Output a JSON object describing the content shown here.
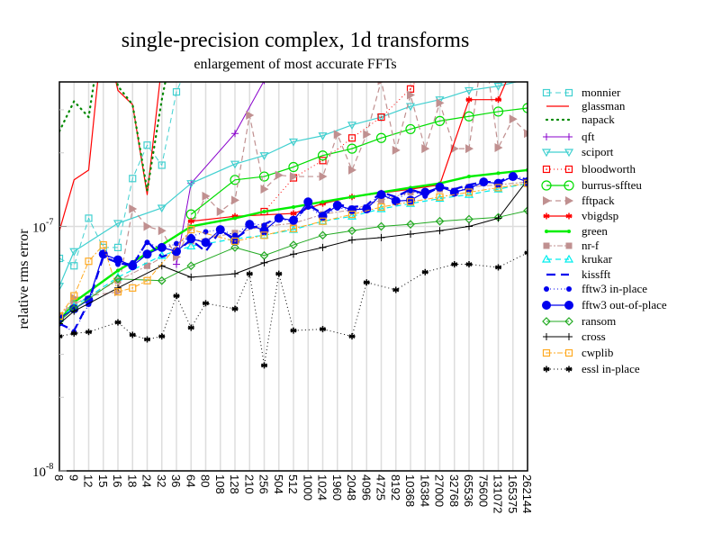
{
  "chart_data": {
    "type": "line",
    "title": "single-precision complex, 1d transforms",
    "subtitle": "enlargement of most accurate FFTs",
    "xlabel": "",
    "ylabel": "relative rms error",
    "yscale": "log",
    "ylim": [
      1e-08,
      3.9e-07
    ],
    "yticks": [
      {
        "mantissa": "10",
        "exponent": "-7",
        "value": 1e-07
      },
      {
        "mantissa": "10",
        "exponent": "-8",
        "value": 1e-08
      }
    ],
    "grid": "vertical",
    "legend_position": "right",
    "categories": [
      "8",
      "9",
      "12",
      "15",
      "16",
      "18",
      "24",
      "32",
      "36",
      "64",
      "80",
      "108",
      "128",
      "210",
      "256",
      "504",
      "512",
      "1000",
      "1024",
      "1960",
      "2048",
      "4096",
      "4725",
      "8192",
      "10368",
      "16384",
      "27000",
      "32768",
      "65536",
      "75600",
      "131072",
      "165375",
      "262144"
    ],
    "series": [
      {
        "name": "monnier",
        "color": "#40d0d0",
        "dash": "6,4",
        "width": 1,
        "marker": "square-open",
        "values": [
          7.4e-08,
          6.9e-08,
          1.08e-07,
          8.2e-08,
          8.2e-08,
          1.57e-07,
          2.15e-07,
          1.78e-07,
          3.55e-07,
          4.9e-07,
          6.8e-07,
          6.1e-07,
          1e-06,
          null,
          null,
          null,
          null,
          null,
          null,
          null,
          null,
          null,
          null,
          null,
          null,
          null,
          null,
          null,
          null,
          null,
          null,
          null,
          null
        ]
      },
      {
        "name": "glassman",
        "color": "#ff0000",
        "dash": "",
        "width": 1.2,
        "marker": "none",
        "values": [
          9.6e-08,
          1.55e-07,
          1.7e-07,
          6.6e-07,
          3.6e-07,
          3.15e-07,
          1.35e-07,
          4.6e-07,
          6.5e-07,
          4.95e-07,
          1.2e-06,
          1.2e-06,
          6e-07,
          1.2e-06,
          1.2e-06,
          null,
          null,
          null,
          null,
          null,
          null,
          null,
          null,
          null,
          null,
          null,
          null,
          null,
          null,
          null,
          null,
          null,
          null
        ]
      },
      {
        "name": "napack",
        "color": "#008800",
        "dash": "1,5",
        "width": 2.2,
        "marker": "none",
        "values": [
          2.45e-07,
          3.25e-07,
          2.8e-07,
          6.9e-07,
          3.75e-07,
          3.15e-07,
          1.4e-07,
          3.3e-07,
          6.6e-07,
          4.3e-07,
          1.1e-06,
          1.1e-06,
          5.1e-07,
          1.1e-06,
          5.5e-07,
          null,
          null,
          null,
          null,
          null,
          null,
          null,
          null,
          null,
          null,
          null,
          null,
          null,
          null,
          null,
          null,
          null,
          null
        ]
      },
      {
        "name": "qft",
        "color": "#8800cc",
        "dash": "",
        "width": 1,
        "marker": "plus",
        "values": [
          null,
          null,
          null,
          null,
          null,
          null,
          null,
          null,
          7e-08,
          1.5e-07,
          null,
          null,
          2.4e-07,
          null,
          3.95e-07,
          null,
          4.55e-07,
          null,
          7.3e-07,
          null,
          1.3e-06,
          null,
          null,
          null,
          null,
          null,
          null,
          null,
          null,
          null,
          null,
          null,
          null
        ]
      },
      {
        "name": "sciport",
        "color": "#40d0d0",
        "dash": "",
        "width": 1.2,
        "marker": "triangle-down",
        "values": [
          5.7e-08,
          7.9e-08,
          null,
          null,
          1.03e-07,
          null,
          null,
          1.19e-07,
          null,
          1.5e-07,
          null,
          null,
          1.8e-07,
          null,
          1.95e-07,
          null,
          2.22e-07,
          null,
          2.35e-07,
          null,
          2.6e-07,
          null,
          2.8e-07,
          null,
          3.1e-07,
          null,
          3.3e-07,
          null,
          3.6e-07,
          null,
          3.75e-07,
          null,
          4e-07
        ]
      },
      {
        "name": "bloodworth",
        "color": "#ff0000",
        "dash": "1,3",
        "width": 1,
        "marker": "square-open-dot",
        "values": [
          null,
          null,
          null,
          null,
          null,
          null,
          null,
          null,
          null,
          null,
          null,
          null,
          null,
          null,
          1.15e-07,
          null,
          1.58e-07,
          null,
          1.86e-07,
          null,
          2.3e-07,
          null,
          2.8e-07,
          null,
          3.65e-07,
          null,
          5.5e-07,
          5.65e-07,
          null,
          null,
          6.05e-07,
          null,
          7.4e-07
        ]
      },
      {
        "name": "burrus-sffteu",
        "color": "#00dd00",
        "dash": "",
        "width": 1.2,
        "marker": "circle-open",
        "values": [
          null,
          null,
          null,
          null,
          null,
          null,
          null,
          null,
          null,
          1.12e-07,
          null,
          null,
          1.55e-07,
          null,
          1.6e-07,
          null,
          1.75e-07,
          null,
          1.95e-07,
          null,
          2.08e-07,
          null,
          2.3e-07,
          null,
          2.5e-07,
          null,
          2.7e-07,
          null,
          2.82e-07,
          null,
          2.95e-07,
          null,
          3.05e-07
        ]
      },
      {
        "name": "fftpack",
        "color": "#c09090",
        "dash": "6,4",
        "width": 1.2,
        "marker": "triangle-right",
        "values": [
          4.2e-08,
          5.1e-08,
          null,
          null,
          5.4e-08,
          1.18e-07,
          1e-07,
          9.6e-08,
          7.5e-08,
          9.9e-08,
          1.33e-07,
          1.15e-07,
          1.28e-07,
          2.85e-07,
          1.42e-07,
          1.62e-07,
          1.6e-07,
          null,
          1.6e-07,
          2.38e-07,
          1.7e-07,
          2.38e-07,
          3.95e-07,
          2.05e-07,
          3.45e-07,
          2.08e-07,
          3.2e-07,
          2.08e-07,
          2.08e-07,
          5.65e-07,
          2.1e-07,
          2.75e-07,
          2.4e-07
        ]
      },
      {
        "name": "vbigdsp",
        "color": "#ff0000",
        "dash": "",
        "width": 1.2,
        "marker": "asterisk",
        "values": [
          null,
          null,
          null,
          null,
          null,
          null,
          null,
          null,
          null,
          1.05e-07,
          null,
          null,
          1.1e-07,
          null,
          null,
          null,
          1.13e-07,
          null,
          1.24e-07,
          null,
          1.32e-07,
          null,
          1.37e-07,
          null,
          1.42e-07,
          null,
          1.48e-07,
          null,
          3.3e-07,
          null,
          3.3e-07,
          null,
          6.2e-07
        ]
      },
      {
        "name": "green",
        "color": "#00ee00",
        "dash": "",
        "width": 2.4,
        "marker": "dot-small",
        "values": [
          4.1e-08,
          4.9e-08,
          null,
          null,
          6.6e-08,
          null,
          null,
          8.4e-08,
          null,
          1e-07,
          null,
          null,
          1.08e-07,
          null,
          1.15e-07,
          null,
          1.2e-07,
          null,
          1.26e-07,
          null,
          1.32e-07,
          null,
          1.38e-07,
          null,
          1.44e-07,
          null,
          1.5e-07,
          null,
          1.6e-07,
          null,
          1.65e-07,
          null,
          1.7e-07
        ]
      },
      {
        "name": "nr-f",
        "color": "#c09090",
        "dash": "6,2,2,2",
        "width": 1,
        "marker": "square-filled",
        "values": [
          4.3e-08,
          4.8e-08,
          null,
          null,
          6e-08,
          null,
          6.9e-08,
          null,
          null,
          8.7e-08,
          null,
          null,
          9.4e-08,
          null,
          1e-07,
          null,
          1.03e-07,
          null,
          1.12e-07,
          null,
          1.17e-07,
          null,
          1.28e-07,
          null,
          1.38e-07,
          null,
          1.42e-07,
          null,
          1.45e-07,
          null,
          1.48e-07,
          null,
          1.52e-07
        ]
      },
      {
        "name": "krukar",
        "color": "#00eeee",
        "dash": "6,4",
        "width": 1.2,
        "marker": "triangle-up-open",
        "values": [
          4.2e-08,
          4.7e-08,
          null,
          null,
          6.2e-08,
          null,
          null,
          7.6e-08,
          null,
          8.3e-08,
          null,
          null,
          8.9e-08,
          null,
          9.2e-08,
          null,
          9.7e-08,
          null,
          1.05e-07,
          null,
          1.1e-07,
          null,
          1.18e-07,
          null,
          1.24e-07,
          null,
          1.3e-07,
          null,
          1.35e-07,
          null,
          1.42e-07,
          null,
          1.5e-07
        ]
      },
      {
        "name": "kissfft",
        "color": "#0000ee",
        "dash": "10,6",
        "width": 2.2,
        "marker": "none",
        "values": [
          4e-08,
          3.75e-08,
          4.9e-08,
          7.5e-08,
          7.1e-08,
          6.9e-08,
          8.7e-08,
          7.5e-08,
          7.9e-08,
          8.8e-08,
          7.9e-08,
          9.6e-08,
          8.9e-08,
          9.8e-08,
          1.02e-07,
          1.09e-07,
          1.05e-07,
          1.22e-07,
          1.13e-07,
          1.23e-07,
          1.2e-07,
          1.22e-07,
          1.38e-07,
          1.32e-07,
          1.42e-07,
          1.35e-07,
          1.45e-07,
          1.42e-07,
          1.48e-07,
          1.52e-07,
          1.52e-07,
          1.62e-07,
          1.55e-07
        ]
      },
      {
        "name": "fftw3 in-place",
        "color": "#0000ee",
        "dash": "1,3",
        "width": 1,
        "marker": "dot-medium",
        "values": [
          4e-08,
          3.7e-08,
          4.8e-08,
          7.8e-08,
          7e-08,
          7.1e-08,
          8.6e-08,
          8.1e-08,
          8.5e-08,
          9.1e-08,
          9.5e-08,
          9.7e-08,
          9.2e-08,
          1.03e-07,
          1.01e-07,
          1.08e-07,
          1.04e-07,
          1.2e-07,
          1.1e-07,
          1.19e-07,
          1.17e-07,
          1.2e-07,
          1.37e-07,
          1.28e-07,
          1.4e-07,
          1.33e-07,
          1.46e-07,
          1.38e-07,
          1.45e-07,
          1.52e-07,
          1.5e-07,
          1.62e-07,
          1.55e-07
        ]
      },
      {
        "name": "fftw3 out-of-place",
        "color": "#0000ee",
        "dash": "",
        "width": 1.2,
        "marker": "dot-large",
        "values": [
          4.2e-08,
          4.6e-08,
          5e-08,
          7.7e-08,
          7.3e-08,
          6.9e-08,
          7.7e-08,
          8.2e-08,
          7.9e-08,
          8.9e-08,
          8.6e-08,
          9.7e-08,
          8.7e-08,
          1.02e-07,
          9.6e-08,
          1.08e-07,
          1.06e-07,
          1.26e-07,
          1.1e-07,
          1.22e-07,
          1.17e-07,
          1.18e-07,
          1.35e-07,
          1.27e-07,
          1.28e-07,
          1.38e-07,
          1.45e-07,
          1.38e-07,
          1.43e-07,
          1.52e-07,
          1.5e-07,
          1.6e-07,
          1.52e-07
        ]
      },
      {
        "name": "ransom",
        "color": "#22aa22",
        "dash": "",
        "width": 1,
        "marker": "diamond-open",
        "values": [
          4.1e-08,
          4.6e-08,
          null,
          null,
          6.1e-08,
          null,
          null,
          6e-08,
          null,
          6.9e-08,
          null,
          null,
          8.2e-08,
          null,
          7.6e-08,
          null,
          8.4e-08,
          null,
          9.2e-08,
          null,
          9.6e-08,
          null,
          1e-07,
          null,
          1.02e-07,
          null,
          1.05e-07,
          null,
          1.07e-07,
          null,
          1.09e-07,
          null,
          1.16e-07
        ]
      },
      {
        "name": "cross",
        "color": "#000000",
        "dash": "",
        "width": 1,
        "marker": "plus",
        "values": [
          4e-08,
          4.5e-08,
          null,
          null,
          5.6e-08,
          null,
          null,
          6.9e-08,
          null,
          6.2e-08,
          null,
          null,
          6.4e-08,
          null,
          7.1e-08,
          null,
          7.7e-08,
          null,
          8.2e-08,
          null,
          8.8e-08,
          null,
          9e-08,
          null,
          9.3e-08,
          null,
          9.6e-08,
          null,
          1e-07,
          null,
          1.08e-07,
          null,
          1.55e-07
        ]
      },
      {
        "name": "cwplib",
        "color": "#ffaa22",
        "dash": "6,2,2,2",
        "width": 1,
        "marker": "square-open-dot",
        "values": [
          4.3e-08,
          5.2e-08,
          7.2e-08,
          8.4e-08,
          5.4e-08,
          5.6e-08,
          6e-08,
          null,
          null,
          9.7e-08,
          null,
          null,
          8.7e-08,
          null,
          9.2e-08,
          null,
          9.8e-08,
          null,
          1.05e-07,
          null,
          1.12e-07,
          null,
          1.2e-07,
          null,
          1.26e-07,
          null,
          1.32e-07,
          null,
          1.38e-07,
          null,
          1.44e-07,
          null,
          1.5e-07
        ]
      },
      {
        "name": "essl in-place",
        "color": "#000000",
        "dash": "1,3",
        "width": 1,
        "marker": "asterisk-black",
        "values": [
          3.55e-08,
          3.65e-08,
          3.7e-08,
          null,
          4.05e-08,
          3.6e-08,
          3.45e-08,
          3.55e-08,
          5.2e-08,
          3.85e-08,
          4.85e-08,
          null,
          4.6e-08,
          6.4e-08,
          2.7e-08,
          6.4e-08,
          3.75e-08,
          null,
          3.8e-08,
          null,
          3.55e-08,
          5.9e-08,
          null,
          5.5e-08,
          null,
          6.5e-08,
          null,
          7e-08,
          7e-08,
          null,
          6.8e-08,
          null,
          7.8e-08
        ]
      }
    ]
  }
}
